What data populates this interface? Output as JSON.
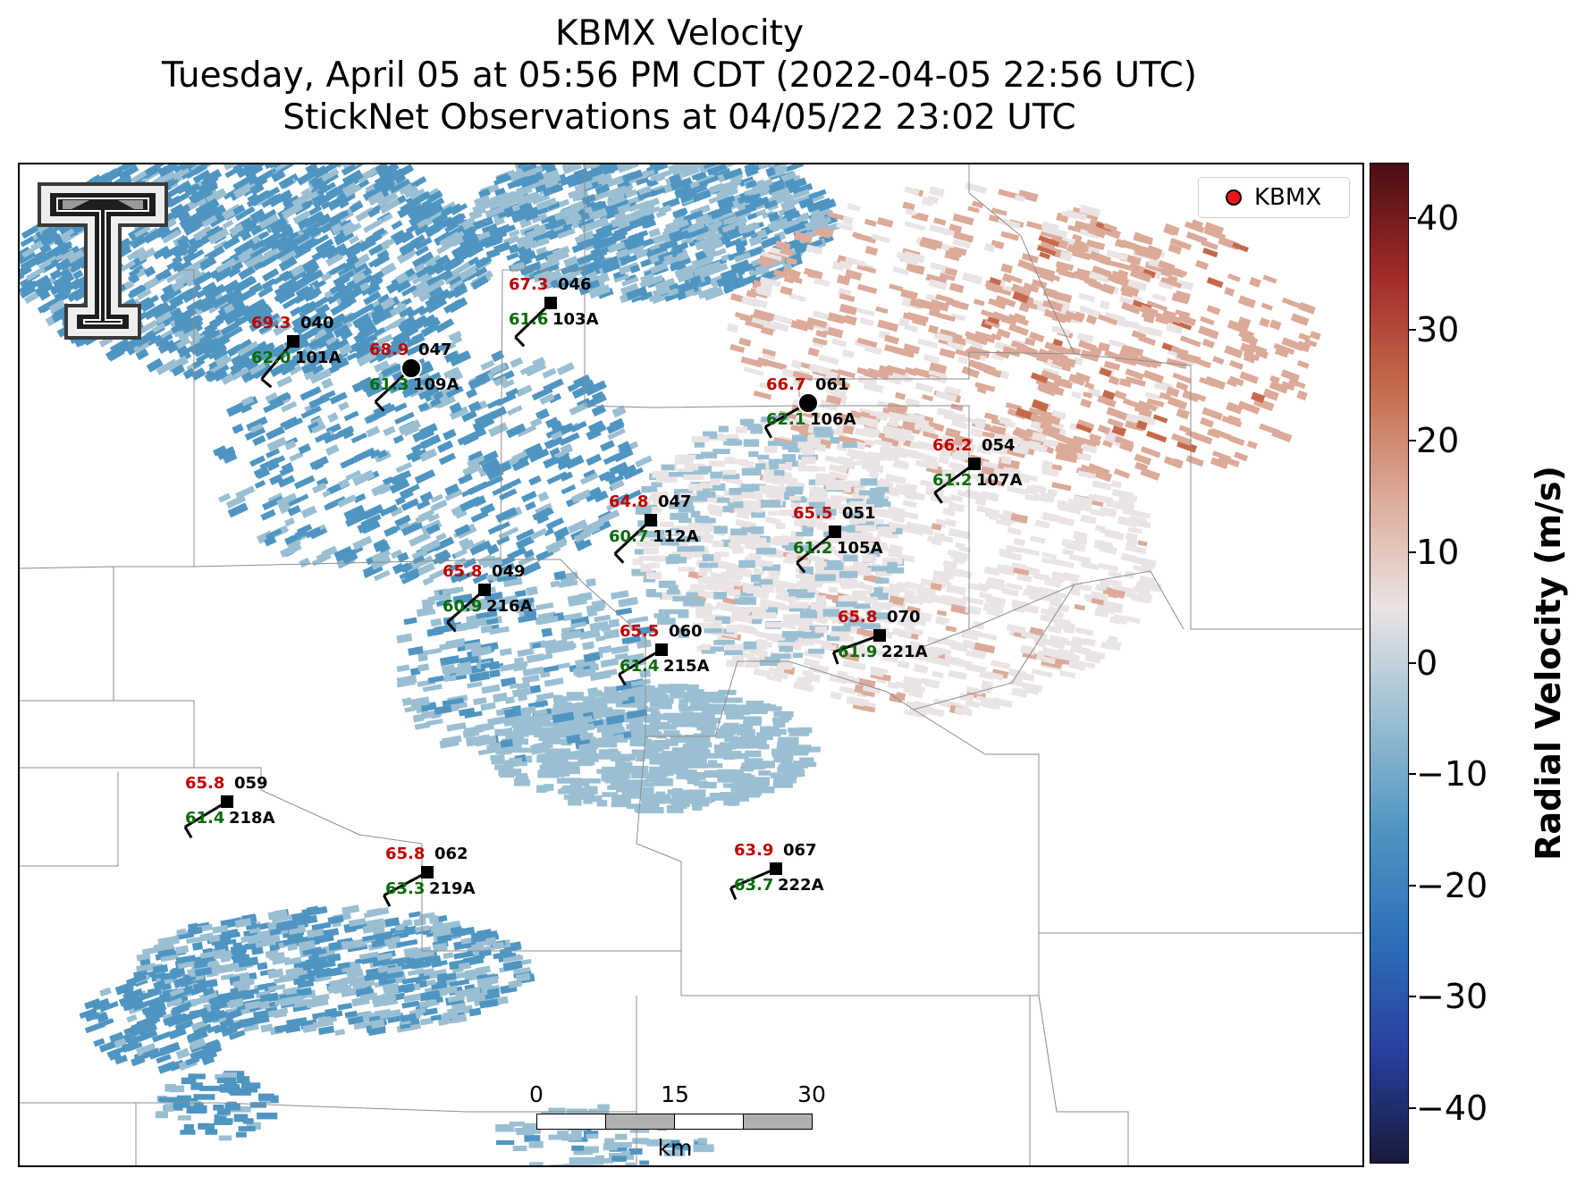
{
  "title": {
    "line1": "KBMX Velocity",
    "line2": "Tuesday, April 05 at 05:56 PM CDT (2022-04-05 22:56 UTC)",
    "line3": "StickNet Observations at 04/05/22 23:02 UTC"
  },
  "legend": {
    "label": "KBMX",
    "marker_color": "#e8161b"
  },
  "scalebar": {
    "ticks": [
      "0",
      "15",
      "30"
    ],
    "unit": "km"
  },
  "colorbar": {
    "label": "Radial Velocity (m/s)",
    "ticks": [
      "40",
      "30",
      "20",
      "10",
      "0",
      "−10",
      "−20",
      "−30",
      "−40"
    ],
    "range": [
      -45,
      45
    ],
    "colors": [
      "#171a3a",
      "#2a3fa0",
      "#2c6fb8",
      "#4f95c2",
      "#9bbfd2",
      "#eae4e4",
      "#dcaa98",
      "#c46a4b",
      "#a22a2a",
      "#4a0d14"
    ]
  },
  "stations": [
    {
      "id": "101A",
      "temp": "69.3",
      "dewpoint": "62.0",
      "dir": "040"
    },
    {
      "id": "109A",
      "temp": "68.9",
      "dewpoint": "61.3",
      "dir": "047"
    },
    {
      "id": "103A",
      "temp": "67.3",
      "dewpoint": "61.6",
      "dir": "046"
    },
    {
      "id": "106A",
      "temp": "66.7",
      "dewpoint": "62.1",
      "dir": "061"
    },
    {
      "id": "107A",
      "temp": "66.2",
      "dewpoint": "61.2",
      "dir": "054"
    },
    {
      "id": "112A",
      "temp": "64.8",
      "dewpoint": "60.7",
      "dir": "047"
    },
    {
      "id": "105A",
      "temp": "65.5",
      "dewpoint": "61.2",
      "dir": "051"
    },
    {
      "id": "216A",
      "temp": "65.8",
      "dewpoint": "60.9",
      "dir": "049"
    },
    {
      "id": "215A",
      "temp": "65.5",
      "dewpoint": "61.4",
      "dir": "060"
    },
    {
      "id": "221A",
      "temp": "65.8",
      "dewpoint": "61.9",
      "dir": "070"
    },
    {
      "id": "218A",
      "temp": "65.8",
      "dewpoint": "61.4",
      "dir": "059"
    },
    {
      "id": "219A",
      "temp": "65.8",
      "dewpoint": "63.3",
      "dir": "062"
    },
    {
      "id": "222A",
      "temp": "63.9",
      "dewpoint": "63.7",
      "dir": "067"
    }
  ]
}
